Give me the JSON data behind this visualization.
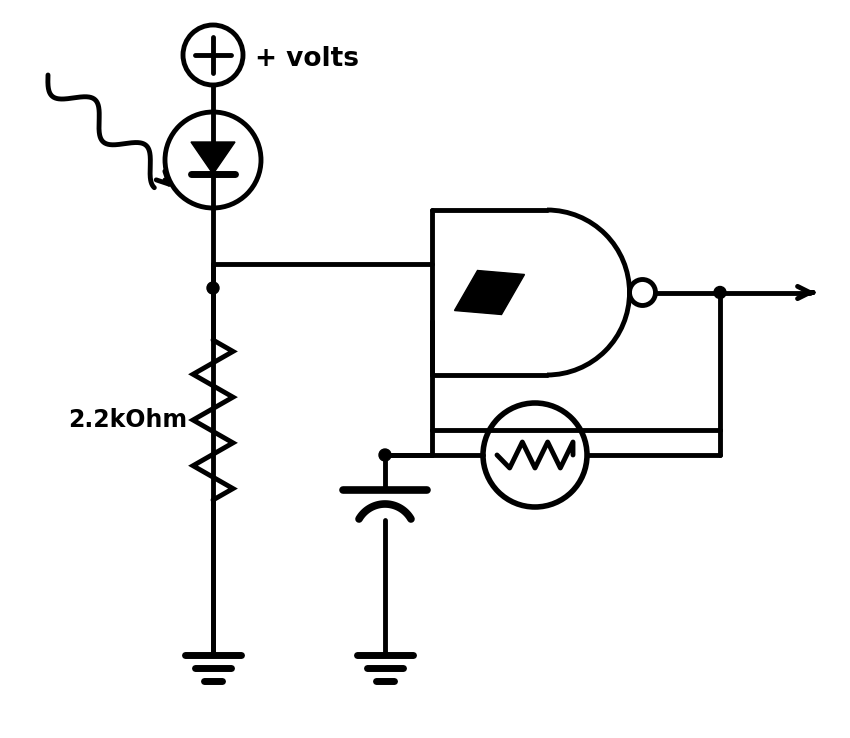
{
  "bg_color": "#ffffff",
  "lc": "#000000",
  "lw": 3.5,
  "label_2k2": "2.2kOhm",
  "label_volts": "+ volts",
  "fig_width": 8.5,
  "fig_height": 7.38,
  "dpi": 100
}
